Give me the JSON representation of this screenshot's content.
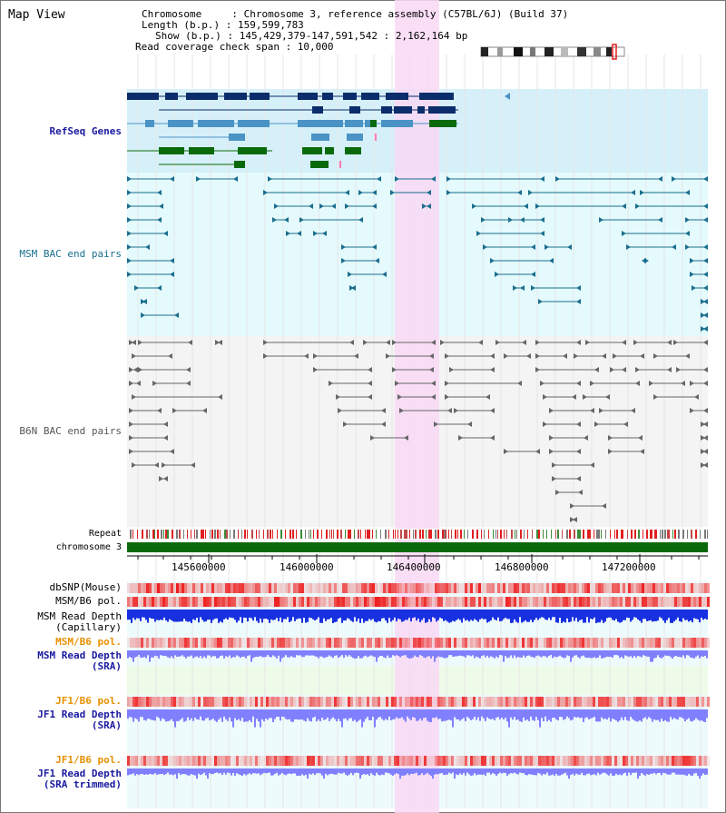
{
  "view_title": "Map View",
  "info": {
    "chromosome": "Chromosome     : Chromosome 3, reference assembly (C57BL/6J) (Build 37)",
    "length": "Length (b.p.) : 159,599,783",
    "show": "Show (b.p.) : 145,429,379-147,591,542 : 2,162,164 bp",
    "span": "Read coverage check span : 10,000"
  },
  "tracks": {
    "refseq": "RefSeq Genes",
    "msm_bac": "MSM BAC end pairs",
    "b6n_bac": "B6N BAC end pairs",
    "repeat": "Repeat",
    "chromosome": "chromosome 3",
    "dbsnp": "dbSNP(Mouse)",
    "msm_pol": "MSM/B6 pol.",
    "msm_depth_cap": "MSM Read Depth\n(Capillary)",
    "msm_pol_sra": "MSM/B6 pol.",
    "msm_depth_sra": "MSM Read Depth\n(SRA)",
    "jf1_pol": "JF1/B6 pol.",
    "jf1_depth_sra": "JF1 Read Depth\n(SRA)",
    "jf1_pol_trim": "JF1/B6 pol.",
    "jf1_depth_trim": "JF1 Read Depth\n(SRA trimmed)"
  },
  "axis_ticks": [
    "145600000",
    "146000000",
    "146400000",
    "146800000",
    "147200000"
  ],
  "colors": {
    "highlight": "#f8d8f4",
    "refseq_bg": "#d6f0fa",
    "msm_bg": "#e4fafc",
    "b6n_bg": "#f4f4f4",
    "gene_dark": "#0c2d6b",
    "gene_mid": "#4a93c4",
    "gene_green": "#0a6a0a",
    "bac_msm": "#1a6e8e",
    "bac_b6n": "#666666",
    "depth_blue": "#1830e0",
    "depth_light": "#8080ff",
    "pol_red": "#ee4040",
    "chrom_green": "#0a6a0a"
  }
}
